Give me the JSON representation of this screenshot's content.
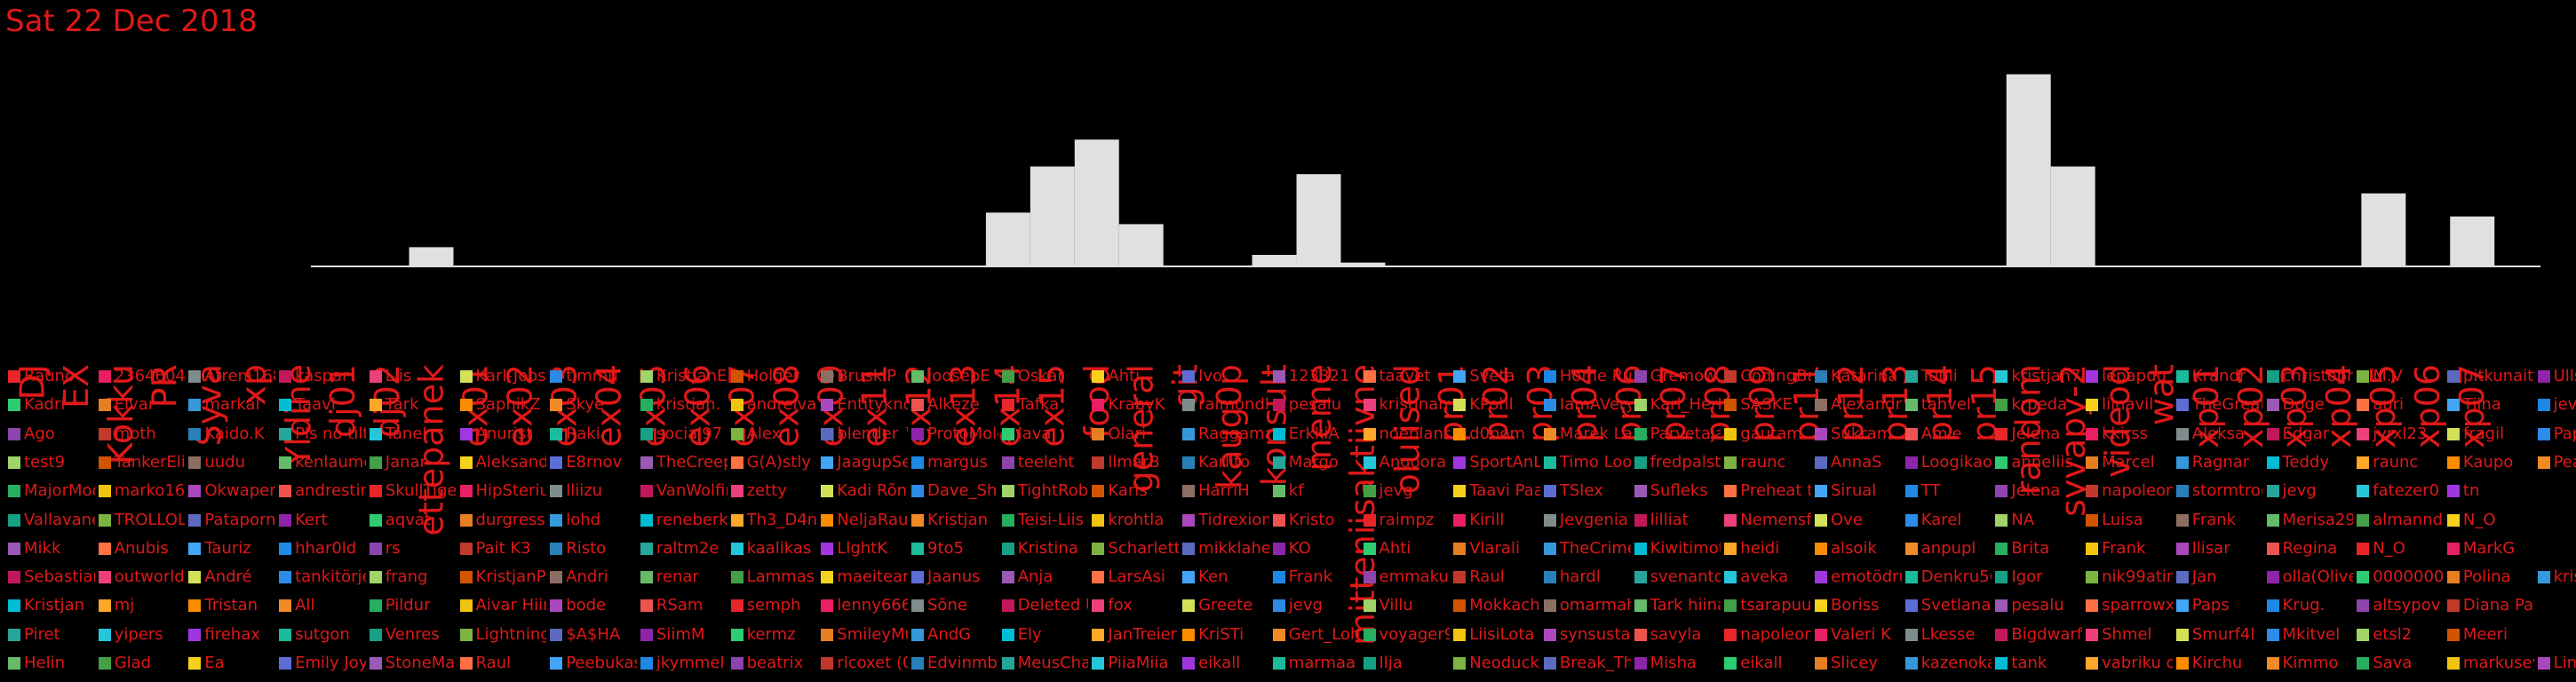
{
  "date_label": "Sat 22 Dec 2018",
  "chart_data": {
    "type": "bar",
    "categories": [
      "DJ",
      "EX",
      "Kokku",
      "PR",
      "Syva",
      "xp",
      "Yldine",
      "dj01",
      "dj02",
      "ettepanek",
      "ex01",
      "ex02",
      "ex03",
      "ex04",
      "ex05",
      "ex06",
      "ex07",
      "ex08",
      "ex09",
      "ex11",
      "ex12",
      "ex13",
      "ex14",
      "ex15",
      "food",
      "general",
      "git",
      "kaug0p",
      "konsult",
      "meme",
      "mitteniisaktiivne",
      "olulised",
      "pr01",
      "pr02",
      "pr03",
      "pr04",
      "pr06",
      "pr07",
      "pr08",
      "pr09",
      "pr11",
      "pr12",
      "pr13",
      "pr14",
      "pr15",
      "random",
      "syvapy-2",
      "videod",
      "wat",
      "xp01",
      "xp02",
      "xp03",
      "xp04",
      "xp05",
      "xp06",
      "xp07"
    ],
    "values": [
      0,
      0,
      0,
      0,
      0,
      0,
      0,
      0,
      0,
      5,
      0,
      0,
      0,
      0,
      0,
      0,
      0,
      0,
      0,
      0,
      0,
      0,
      14,
      26,
      33,
      11,
      0,
      0,
      3,
      24,
      1,
      0,
      0,
      0,
      0,
      0,
      0,
      0,
      0,
      0,
      0,
      0,
      0,
      0,
      0,
      50,
      26,
      0,
      0,
      0,
      0,
      0,
      0,
      19,
      0,
      13
    ],
    "ylim": [
      0,
      55
    ],
    "grid": false,
    "bar_color": "#e0e0e0"
  },
  "users": [
    [
      "Rauno",
      "Kadri",
      "Ago",
      "test9",
      "MajorMoo",
      "Vallavanem",
      "Mikk",
      "Sebastian",
      "Kristjan",
      "Piret",
      "Helin"
    ],
    [
      "23646040",
      "Elvar",
      "moth",
      "TankerElite",
      "marko169",
      "TROLLOLOL",
      "Anubis",
      "outworld",
      "mj",
      "yipers",
      "Glad"
    ],
    [
      "Atreni168",
      "markal",
      "Kaido.K",
      "uudu",
      "Okwaper",
      "Pataporn",
      "Tauriz",
      "André",
      "Tristan",
      "firehax",
      "Ea"
    ],
    [
      "kaspar",
      "Taavi",
      "Pls no tilt",
      "kenlaumets",
      "andrestim",
      "Kert",
      "hhar0ld",
      "tankitörje",
      "All",
      "sutgon",
      "Emily Joy"
    ],
    [
      "Liis",
      "Tärk",
      "Tanel",
      "Janar",
      "SkullTiger",
      "aqvat",
      "rs",
      "frang",
      "Pildur",
      "Venres",
      "StoneMalo"
    ],
    [
      "Karl-Joosep",
      "SapnikZ",
      "Anurist",
      "Aleksander",
      "HipSterius",
      "durgress",
      "Pait K3",
      "KristjanP",
      "Aivar Hiir",
      "Lightning",
      "Raul"
    ],
    [
      "timmu",
      "Skye",
      "Raki",
      "E8rnov",
      "lliizu",
      "lohd",
      "Risto",
      "Andri",
      "bode",
      "$A$HA",
      "Peebukas"
    ],
    [
      "KristjanEri",
      "kristjan.",
      "social97",
      "TheCreepy",
      "VanWolfing",
      "reneberkit",
      "raltm2e",
      "renar",
      "RSam",
      "SiimM",
      "jkymmel"
    ],
    [
      "Holger",
      "andreivas",
      "Alex",
      "G(A)stly",
      "zetty",
      "Th3_D4ng3",
      "kaalikas",
      "Lammas",
      "semph",
      "kermz",
      "beatrix"
    ],
    [
      "BruskiP",
      "Entityknow",
      "blender ™",
      "JaagupSell",
      "Kadi Rõn",
      "NeljaRaudi",
      "LlghtK",
      "maeiteami",
      "lenny666",
      "SmileyMum",
      "rlcoxet (0)"
    ],
    [
      "JoosepE",
      "Alkeze",
      "ProtoMole",
      "margus",
      "Dave_Shin",
      "Kristjan",
      "9to5",
      "Jaanus",
      "Sõne",
      "AndG",
      "Edvinmbal"
    ],
    [
      "Oskar",
      "Tafka",
      "lava",
      "teeleht",
      "TightRobot",
      "Teisi-Liis",
      "Kristina",
      "Anja",
      "Deleted Us",
      "Ely",
      "MeusChap"
    ],
    [
      "Ahti",
      "KrabyK",
      "Olari",
      "llmarB",
      "Karis",
      "krohtla",
      "Scharlett",
      "LarsAsi",
      "fox",
      "JanTreier",
      "PiiaMiia"
    ],
    [
      "Ivo",
      "raimondl",
      "Raggamas",
      "Karlito",
      "HarriH",
      "Tidrexion",
      "mikklahe",
      "Ken",
      "Greete",
      "KriSTi",
      "eikall"
    ],
    [
      "123321",
      "pesalu",
      "ErkkiA",
      "Margo",
      "kf",
      "Kristo",
      "KO",
      "Frank",
      "jevg",
      "Gert_Lohm",
      "marmaa"
    ],
    [
      "taavet",
      "kristinamm",
      "noeblande",
      "Angoora J",
      "jevg",
      "raimpz",
      "Ahti",
      "emmakups",
      "Villu",
      "voyager94",
      "Ilja"
    ],
    [
      "Sveta",
      "KPohl",
      "d0nom",
      "SportAnLife",
      "Taavi Paal",
      "Kirill",
      "Vlarali",
      "Raul",
      "Mokkachino",
      "LiisiLota",
      "Neoduck"
    ],
    [
      "Home Run",
      "IamAVeryFi",
      "Marek Lah",
      "Timo Loon",
      "TSlex",
      "Jevgenia",
      "TheCrimer",
      "hardl",
      "omarmahl",
      "synsustain",
      "Break_The"
    ],
    [
      "Gremow",
      "Karl_HerM",
      "Parvetaja",
      "fredpalst",
      "Sufleks",
      "lilliat",
      "Kiwitimot",
      "svenanton",
      "Tark hiina",
      "savyla",
      "Misha"
    ],
    [
      "CodingBad",
      "SASKE",
      "gautam",
      "raunc",
      "Preheat to",
      "Nemensfa",
      "heidi",
      "aveka",
      "tsarapuu",
      "napoleon",
      "eikall"
    ],
    [
      "Katarina",
      "Alexandra",
      "Sukram",
      "AnnaS",
      "Sirual",
      "Ove",
      "alsoik",
      "emotödruk",
      "Boriss",
      "Valeri K",
      "Slicey"
    ],
    [
      "Tuuli",
      "tahvel",
      "Amie",
      "Loogikaos",
      "TT",
      "Karel",
      "anpupl",
      "Denkru56",
      "Svetlana",
      "Lkesse",
      "kazenokaz"
    ],
    [
      "kristjan74",
      "krpeda",
      "Jelena",
      "anneliis",
      "Jelena",
      "NA",
      "Brita",
      "Igor",
      "pesalu",
      "Bigdwarf",
      "tank"
    ],
    [
      "lepapuu",
      "liinavil",
      "kkirss",
      "Marcel",
      "napoleon",
      "Luisa",
      "Frank",
      "nik99atin",
      "sparrowxz",
      "Shmel",
      "vabriku dil"
    ],
    [
      "Krandr",
      "TheGreatL",
      "Aleksa",
      "Ragnar",
      "stormtroo",
      "Frank",
      "llisar",
      "Jan",
      "Paps",
      "Smurf4l",
      "Kirchu"
    ],
    [
      "christophe",
      "Doge",
      "Edgar",
      "Teddy",
      "jevg",
      "Merisa290",
      "Regina",
      "olla(Oliver",
      "Krug.",
      "Mkitvel",
      "Kimmo"
    ],
    [
      "M.V",
      "auri",
      "jyrxl23",
      "raunc",
      "fatezer0",
      "almannd",
      "N_O",
      "00000001",
      "altsypov",
      "etsl2",
      "Sava"
    ],
    [
      "pitkunait",
      "Tiina",
      "fragil",
      "Kaupo",
      "tn",
      "N_O",
      "MarkG",
      "Polina",
      "Diana Paci",
      "Meeri",
      "markusey"
    ],
    [
      "Ulls",
      "jevgen",
      "PapaSaya",
      "Pearu Puu",
      "",
      "",
      "",
      "kristel",
      "",
      "",
      "Lindamai"
    ]
  ],
  "palette": [
    "#e8262a",
    "#9f36e0",
    "#2b8be6",
    "#2ecc71",
    "#f7d21c",
    "#f08a24",
    "#8e44ad",
    "#e91e63",
    "#1abc9c",
    "#a0d468",
    "#e67e22",
    "#5d6dd6",
    "#27ae60",
    "#c0392b",
    "#7f8c8d",
    "#16a085",
    "#d35400",
    "#3498db",
    "#9b59b6",
    "#f1c40f",
    "#2980b9",
    "#c2185b",
    "#7cb342",
    "#8d6e63",
    "#00bcd4",
    "#ff7043",
    "#ab47bc",
    "#26a69a",
    "#ec407a",
    "#5c6bc0",
    "#66bb6a",
    "#ffa726",
    "#42a5f5",
    "#ef5350",
    "#26c6da",
    "#d4e157",
    "#8e24aa",
    "#43a047",
    "#fb8c00",
    "#1e88e5"
  ]
}
